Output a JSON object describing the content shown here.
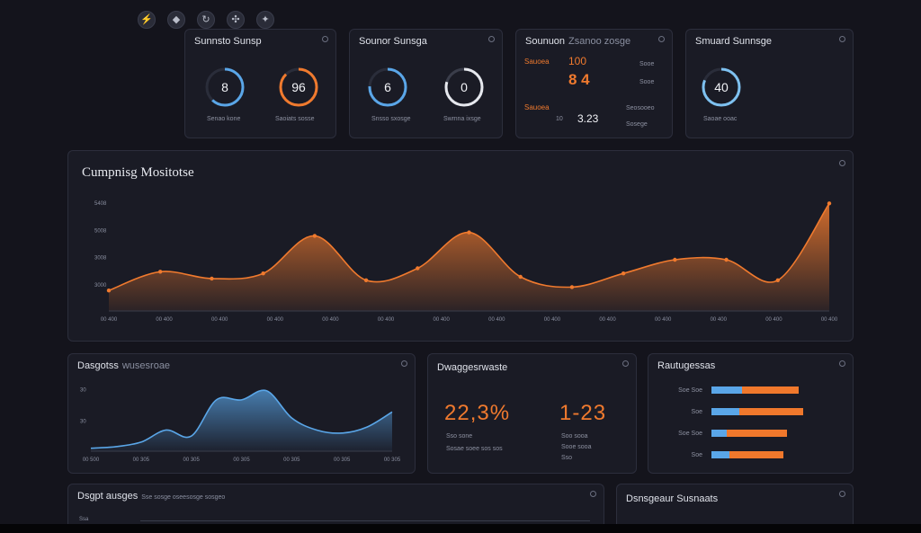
{
  "toolbar": {
    "icons": [
      "lightning-icon",
      "diamond-icon",
      "refresh-icon",
      "network-icon",
      "sparkle-icon"
    ],
    "glyphs": [
      "⚡",
      "◆",
      "↻",
      "✣",
      "✦"
    ]
  },
  "kpi_panels": [
    {
      "title": "Sunnsto Sunsp",
      "gauges": [
        {
          "value": "8",
          "label": "Senao kone"
        },
        {
          "value": "96",
          "label": "Saoiats sosse"
        }
      ]
    },
    {
      "title": "Sounor Sunsga",
      "gauges": [
        {
          "value": "6",
          "label": "Snsso sxosge"
        },
        {
          "value": "0",
          "label": "Swmna ixsge"
        }
      ]
    },
    {
      "title": "Sounuon",
      "subtitle": "Zsanoo zosge",
      "rows": [
        {
          "tag": "Sauoea",
          "value": "100"
        },
        {
          "tag": "",
          "value": "8 4"
        },
        {
          "tag": "Sauoea",
          "value": "3.23",
          "prefix": "10"
        }
      ],
      "side_labels": [
        "Sooe",
        "Sooe",
        "Seosooeo",
        "Sosege"
      ]
    },
    {
      "title": "Smuard Sunnsge",
      "gauges": [
        {
          "value": "40",
          "label": "Saoae ooac"
        }
      ]
    }
  ],
  "main_chart_panel": {
    "title": "Cumpnisg Mositotse"
  },
  "chart_data": [
    {
      "type": "area",
      "title": "Cumpnisg Mositotse",
      "ytick_labels": [
        "5408",
        "5008",
        "3008",
        "3000"
      ],
      "xtick_labels": [
        "00 400",
        "00 400",
        "00 400",
        "00 400",
        "00 400",
        "00 400",
        "00 400",
        "00 400",
        "00 400",
        "00 400",
        "00 400",
        "00 400",
        "00 400",
        "00 400"
      ],
      "series": [
        {
          "values": [
            12,
            23,
            19,
            22,
            44,
            18,
            25,
            46,
            20,
            14,
            22,
            30,
            30,
            18,
            63
          ],
          "color": "#f07a2e"
        }
      ],
      "ylim": [
        0,
        70
      ]
    },
    {
      "type": "area",
      "title": "Dasgotss",
      "ytick_labels": [
        "30",
        "30"
      ],
      "xtick_labels": [
        "00 500",
        "00 305",
        "00 305",
        "00 305",
        "00 305",
        "00 305",
        "00 305"
      ],
      "series": [
        {
          "values": [
            2,
            3,
            6,
            14,
            10,
            34,
            34,
            40,
            22,
            14,
            12,
            16,
            26
          ],
          "color": "#5aa6e8"
        }
      ],
      "ylim": [
        0,
        50
      ]
    }
  ],
  "panel_blue": {
    "title": "Dasgotss",
    "subtitle": "wusesroae"
  },
  "panel_values": {
    "title": "Dwaggesrwaste",
    "value_a": "22,3%",
    "value_b": "1-23",
    "sub_a": "Sso sone",
    "sub_a2": "Sosae soee sos sos",
    "sub_b": "Soo sooa",
    "sub_b2": "Sooe sooa",
    "sub_b3": "Sso"
  },
  "panel_bars": {
    "title": "Rautugessas",
    "bars": [
      {
        "label": "Soe Soe",
        "blue_frac": 0.35,
        "orange_frac": 0.65,
        "total_frac": 0.95
      },
      {
        "label": "Soe",
        "blue_frac": 0.3,
        "orange_frac": 0.7,
        "total_frac": 1.0
      },
      {
        "label": "Soe Soe",
        "blue_frac": 0.2,
        "orange_frac": 0.8,
        "total_frac": 0.82
      },
      {
        "label": "Soe",
        "blue_frac": 0.25,
        "orange_frac": 0.75,
        "total_frac": 0.78
      }
    ]
  },
  "panel_bottom_left": {
    "title": "Dsgpt ausges",
    "subtitle": "Sse sosge oseesosge sosgeo",
    "tick": "Ssa"
  },
  "panel_bottom_right": {
    "title": "Dsnsgeaur Susnaats"
  }
}
